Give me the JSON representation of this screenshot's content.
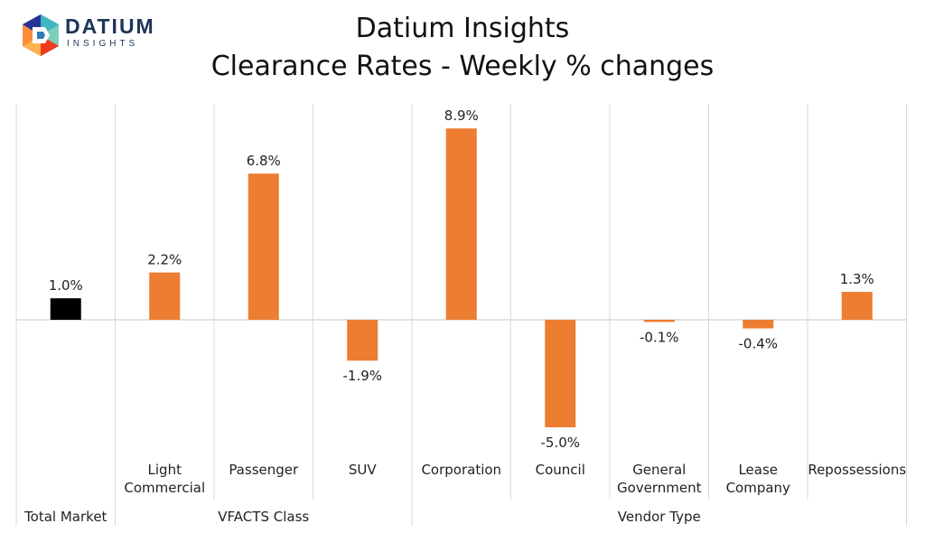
{
  "logo": {
    "name": "DATIUM",
    "sub": "INSIGHTS"
  },
  "title": {
    "line1": "Datium Insights",
    "line2": "Clearance Rates - Weekly % changes"
  },
  "colors": {
    "total": "#000000",
    "bar": "#ED7D31",
    "grid": "#D9D9D9",
    "logo_text": "#1d3557"
  },
  "chart_data": {
    "type": "bar",
    "title": "Datium Insights\nClearance Rates - Weekly % changes",
    "xlabel": "",
    "ylabel": "",
    "grid": true,
    "legend": "none",
    "categories": [
      [
        "Total Market"
      ],
      [
        "Light",
        "Commercial"
      ],
      [
        "Passenger"
      ],
      [
        "SUV"
      ],
      [
        "Corporation"
      ],
      [
        "Council"
      ],
      [
        "General",
        "Government"
      ],
      [
        "Lease",
        "Company"
      ],
      [
        "Repossessions"
      ]
    ],
    "values": [
      1.0,
      2.2,
      6.8,
      -1.9,
      8.9,
      -5.0,
      -0.1,
      -0.4,
      1.3
    ],
    "data_labels": [
      "1.0%",
      "2.2%",
      "6.8%",
      "-1.9%",
      "8.9%",
      "-5.0%",
      "-0.1%",
      "-0.4%",
      "1.3%"
    ],
    "groups": [
      {
        "label": "",
        "categories": [
          "Total Market"
        ]
      },
      {
        "label": "VFACTS Class",
        "categories": [
          "Light Commercial",
          "Passenger",
          "SUV"
        ]
      },
      {
        "label": "Vendor Type",
        "categories": [
          "Corporation",
          "Council",
          "General Government",
          "Lease Company",
          "Repossessions"
        ]
      }
    ],
    "highlight_index": 0,
    "ylim": [
      -5.9,
      10.0
    ]
  }
}
